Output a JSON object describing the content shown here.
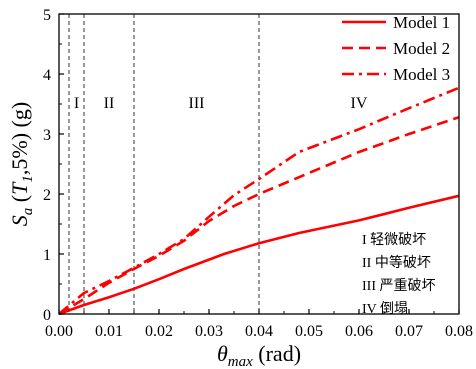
{
  "chart_data": {
    "type": "line",
    "x_axis": {
      "label": {
        "symbol": "θ",
        "subscript": "max",
        "unit": " (rad)"
      },
      "range": [
        0,
        0.08
      ],
      "ticks": [
        0,
        0.01,
        0.02,
        0.03,
        0.04,
        0.05,
        0.06,
        0.07,
        0.08
      ],
      "tick_labels": [
        "0.00",
        "0.01",
        "0.02",
        "0.03",
        "0.04",
        "0.05",
        "0.06",
        "0.07",
        "0.08"
      ]
    },
    "y_axis": {
      "label": {
        "symbol": "S",
        "subscript": "a",
        "open": " (",
        "period_symbol": "T",
        "period_subscript": "1",
        "rest": ",5%) (g)"
      },
      "range": [
        0,
        5
      ],
      "ticks": [
        0,
        1,
        2,
        3,
        4,
        5
      ],
      "tick_labels": [
        "0",
        "1",
        "2",
        "3",
        "4",
        "5"
      ]
    },
    "grid": false,
    "legend": {
      "placement": "top-right"
    },
    "series": [
      {
        "name": "Model 1",
        "dash": "solid",
        "color": "#ff0000",
        "points": [
          [
            0,
            0
          ],
          [
            0.005,
            0.15
          ],
          [
            0.01,
            0.28
          ],
          [
            0.015,
            0.42
          ],
          [
            0.02,
            0.58
          ],
          [
            0.025,
            0.75
          ],
          [
            0.033,
            1.0
          ],
          [
            0.04,
            1.18
          ],
          [
            0.048,
            1.35
          ],
          [
            0.06,
            1.56
          ],
          [
            0.07,
            1.77
          ],
          [
            0.08,
            1.97
          ]
        ]
      },
      {
        "name": "Model 2",
        "dash": "dashed",
        "color": "#ff0000",
        "points": [
          [
            0,
            0
          ],
          [
            0.005,
            0.25
          ],
          [
            0.01,
            0.52
          ],
          [
            0.015,
            0.75
          ],
          [
            0.02,
            0.97
          ],
          [
            0.025,
            1.22
          ],
          [
            0.03,
            1.55
          ],
          [
            0.035,
            1.8
          ],
          [
            0.04,
            2.0
          ],
          [
            0.05,
            2.35
          ],
          [
            0.06,
            2.7
          ],
          [
            0.07,
            3.0
          ],
          [
            0.08,
            3.28
          ]
        ]
      },
      {
        "name": "Model 3",
        "dash": "dash-dot",
        "color": "#ff0000",
        "points": [
          [
            0,
            0
          ],
          [
            0.005,
            0.35
          ],
          [
            0.01,
            0.55
          ],
          [
            0.015,
            0.77
          ],
          [
            0.02,
            1.0
          ],
          [
            0.025,
            1.25
          ],
          [
            0.03,
            1.62
          ],
          [
            0.035,
            1.98
          ],
          [
            0.04,
            2.25
          ],
          [
            0.048,
            2.7
          ],
          [
            0.06,
            3.08
          ],
          [
            0.07,
            3.43
          ],
          [
            0.08,
            3.77
          ]
        ]
      }
    ],
    "damage_thresholds": [
      0.002,
      0.005,
      0.015,
      0.04
    ],
    "damage_regions": [
      {
        "label": "I",
        "x_range": [
          0.002,
          0.005
        ]
      },
      {
        "label": "II",
        "x_range": [
          0.005,
          0.015
        ]
      },
      {
        "label": "III",
        "x_range": [
          0.015,
          0.04
        ]
      },
      {
        "label": "IV",
        "x_range": [
          0.04,
          0.08
        ]
      }
    ],
    "damage_state_legend": [
      "I 轻微破坏",
      "II 中等破坏",
      "III 严重破坏",
      "IV 倒塌"
    ]
  }
}
